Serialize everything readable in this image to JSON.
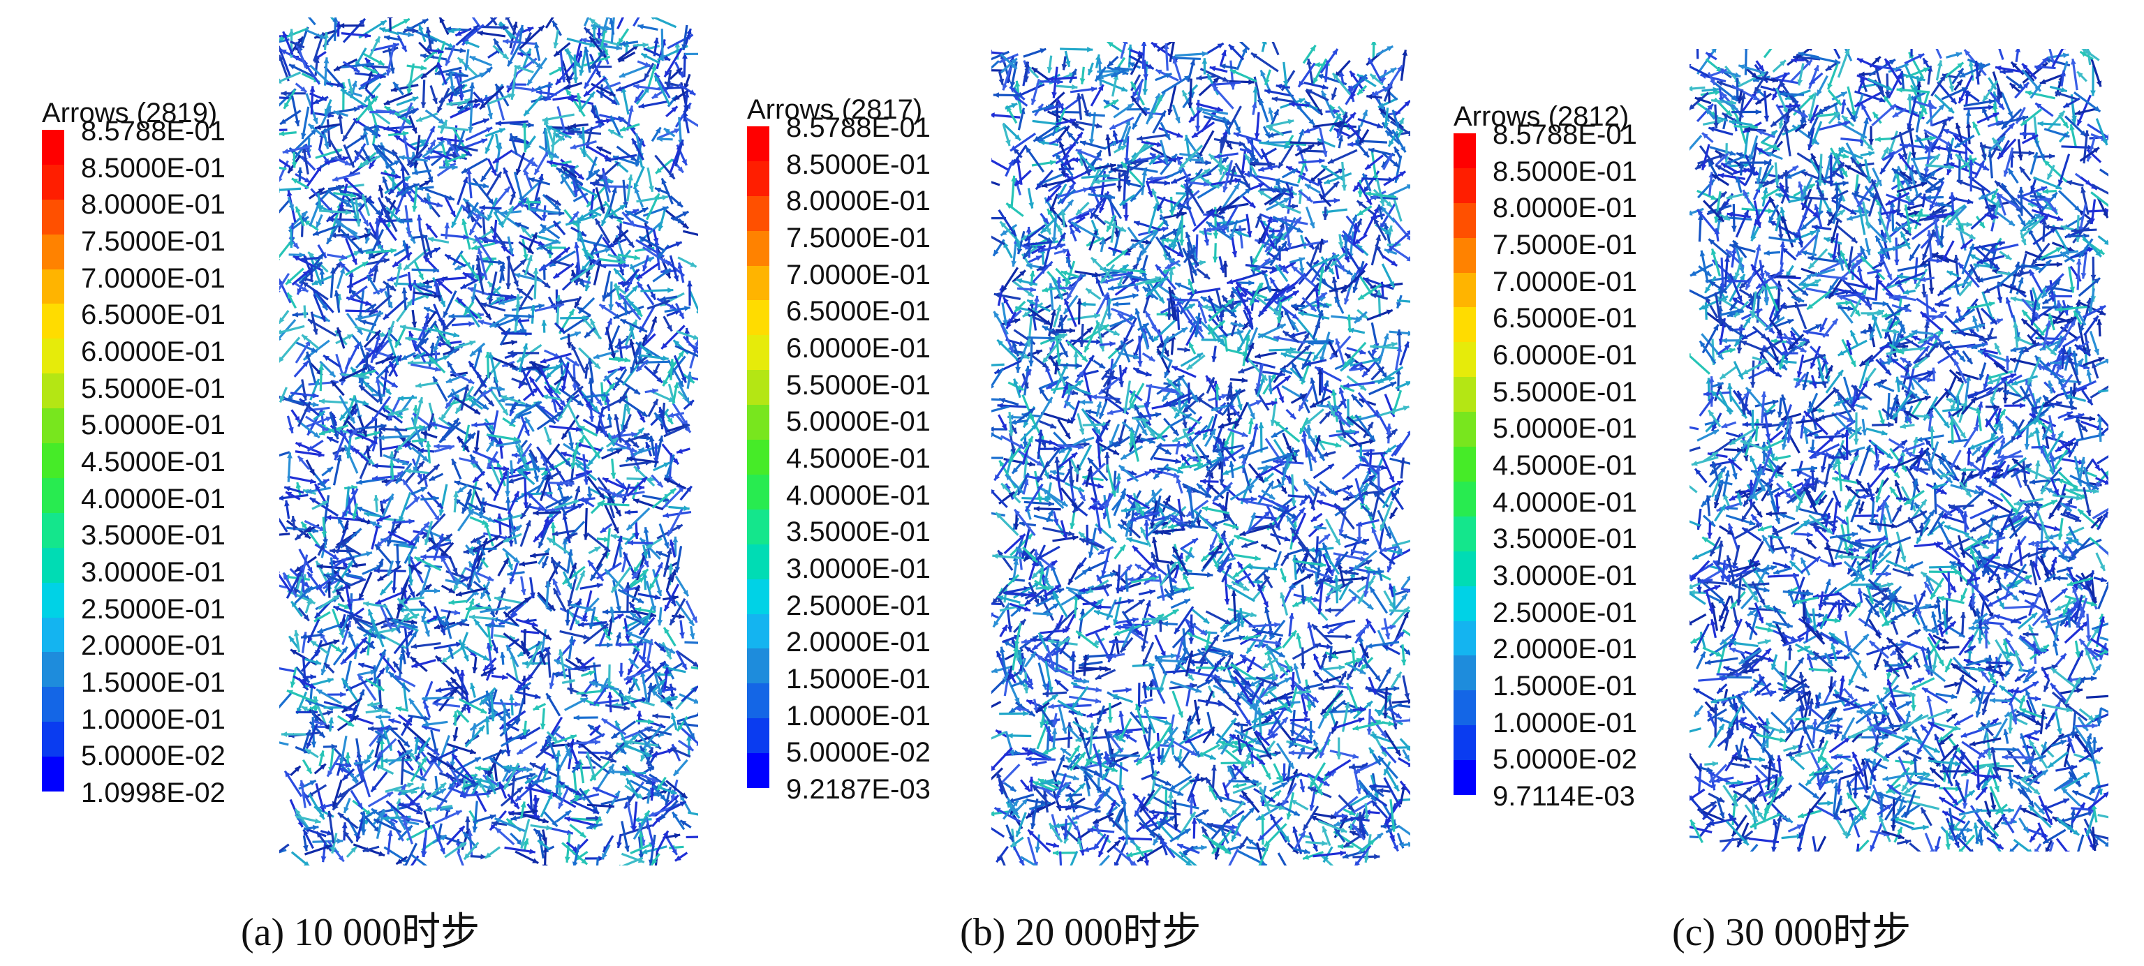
{
  "colorbar_colors": [
    "#0000ff",
    "#0a3cf0",
    "#1466e6",
    "#1e8cdc",
    "#14b4f0",
    "#00d2e6",
    "#00dcb4",
    "#14e68c",
    "#28eb50",
    "#46eb28",
    "#78e61e",
    "#b4e614",
    "#e6eb0a",
    "#ffdc00",
    "#ffb400",
    "#ff8200",
    "#ff5000",
    "#ff1e00",
    "#ff0000"
  ],
  "panels": [
    {
      "legend_title": "Arrows (2819)",
      "legend_labels": [
        "8.5788E-01",
        "8.5000E-01",
        "8.0000E-01",
        "7.5000E-01",
        "7.0000E-01",
        "6.5000E-01",
        "6.0000E-01",
        "5.5000E-01",
        "5.0000E-01",
        "4.5000E-01",
        "4.0000E-01",
        "3.5000E-01",
        "3.0000E-01",
        "2.5000E-01",
        "2.0000E-01",
        "1.5000E-01",
        "1.0000E-01",
        "5.0000E-02",
        "1.0998E-02"
      ],
      "caption": "(a) 10 000时步"
    },
    {
      "legend_title": "Arrows (2817)",
      "legend_labels": [
        "8.5788E-01",
        "8.5000E-01",
        "8.0000E-01",
        "7.5000E-01",
        "7.0000E-01",
        "6.5000E-01",
        "6.0000E-01",
        "5.5000E-01",
        "5.0000E-01",
        "4.5000E-01",
        "4.0000E-01",
        "3.5000E-01",
        "3.0000E-01",
        "2.5000E-01",
        "2.0000E-01",
        "1.5000E-01",
        "1.0000E-01",
        "5.0000E-02",
        "9.2187E-03"
      ],
      "caption": "(b) 20 000时步"
    },
    {
      "legend_title": "Arrows (2812)",
      "legend_labels": [
        "8.5788E-01",
        "8.5000E-01",
        "8.0000E-01",
        "7.5000E-01",
        "7.0000E-01",
        "6.5000E-01",
        "6.0000E-01",
        "5.5000E-01",
        "5.0000E-01",
        "4.5000E-01",
        "4.0000E-01",
        "3.5000E-01",
        "3.0000E-01",
        "2.5000E-01",
        "2.0000E-01",
        "1.5000E-01",
        "1.0000E-01",
        "5.0000E-02",
        "9.7114E-03"
      ],
      "caption": "(c) 30 000时步"
    }
  ]
}
